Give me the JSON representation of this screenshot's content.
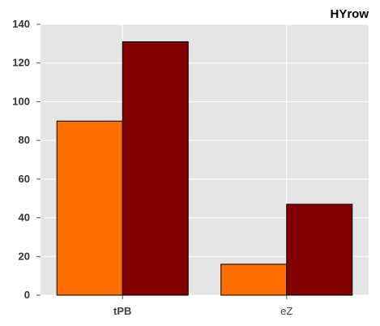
{
  "chart_data": {
    "type": "bar",
    "title": "HYrow",
    "categories": [
      "tPB",
      "eZ"
    ],
    "series": [
      {
        "values": [
          90,
          16
        ],
        "color": "#ff6f00"
      },
      {
        "values": [
          131,
          47
        ],
        "color": "#800000"
      }
    ],
    "ylim": [
      0,
      140
    ],
    "yticks": [
      0,
      20,
      40,
      60,
      80,
      100,
      120,
      140
    ],
    "xlabel": "",
    "ylabel": "",
    "grid": true,
    "background": "#e5e5e5",
    "grid_color": "#ffffff"
  }
}
